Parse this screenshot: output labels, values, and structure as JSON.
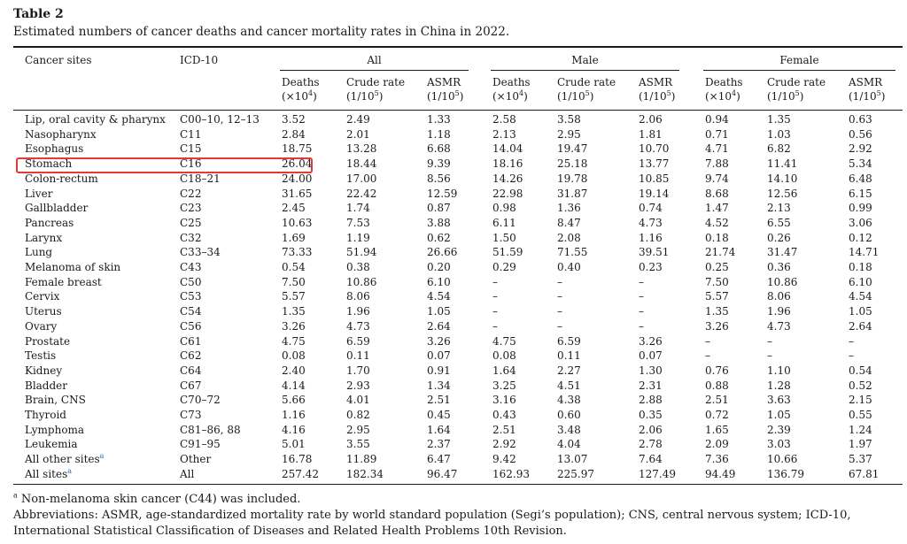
{
  "table_label": "Table 2",
  "caption": "Estimated numbers of cancer deaths and cancer mortality rates in China in 2022.",
  "headers": {
    "site": "Cancer sites",
    "icd": "ICD-10",
    "groups": [
      "All",
      "Male",
      "Female"
    ],
    "deaths_line1": "Deaths",
    "deaths_line2": "(×10",
    "deaths_exp": "4",
    "crude_line1": "Crude rate",
    "crude_line2": "(1/10",
    "crude_exp": "5",
    "asmr_line1": "ASMR",
    "asmr_line2": "(1/10",
    "asmr_exp": "5",
    "close": ")"
  },
  "rows": [
    {
      "site": "Lip, oral cavity & pharynx",
      "icd": "C00–10, 12–13",
      "v": [
        "3.52",
        "2.49",
        "1.33",
        "2.58",
        "3.58",
        "2.06",
        "0.94",
        "1.35",
        "0.63"
      ]
    },
    {
      "site": "Nasopharynx",
      "icd": "C11",
      "v": [
        "2.84",
        "2.01",
        "1.18",
        "2.13",
        "2.95",
        "1.81",
        "0.71",
        "1.03",
        "0.56"
      ]
    },
    {
      "site": "Esophagus",
      "icd": "C15",
      "v": [
        "18.75",
        "13.28",
        "6.68",
        "14.04",
        "19.47",
        "10.70",
        "4.71",
        "6.82",
        "2.92"
      ]
    },
    {
      "site": "Stomach",
      "icd": "C16",
      "v": [
        "26.04",
        "18.44",
        "9.39",
        "18.16",
        "25.18",
        "13.77",
        "7.88",
        "11.41",
        "5.34"
      ]
    },
    {
      "site": "Colon-rectum",
      "icd": "C18–21",
      "v": [
        "24.00",
        "17.00",
        "8.56",
        "14.26",
        "19.78",
        "10.85",
        "9.74",
        "14.10",
        "6.48"
      ]
    },
    {
      "site": "Liver",
      "icd": "C22",
      "v": [
        "31.65",
        "22.42",
        "12.59",
        "22.98",
        "31.87",
        "19.14",
        "8.68",
        "12.56",
        "6.15"
      ]
    },
    {
      "site": "Gallbladder",
      "icd": "C23",
      "v": [
        "2.45",
        "1.74",
        "0.87",
        "0.98",
        "1.36",
        "0.74",
        "1.47",
        "2.13",
        "0.99"
      ]
    },
    {
      "site": "Pancreas",
      "icd": "C25",
      "v": [
        "10.63",
        "7.53",
        "3.88",
        "6.11",
        "8.47",
        "4.73",
        "4.52",
        "6.55",
        "3.06"
      ]
    },
    {
      "site": "Larynx",
      "icd": "C32",
      "v": [
        "1.69",
        "1.19",
        "0.62",
        "1.50",
        "2.08",
        "1.16",
        "0.18",
        "0.26",
        "0.12"
      ]
    },
    {
      "site": "Lung",
      "icd": "C33–34",
      "v": [
        "73.33",
        "51.94",
        "26.66",
        "51.59",
        "71.55",
        "39.51",
        "21.74",
        "31.47",
        "14.71"
      ]
    },
    {
      "site": "Melanoma of skin",
      "icd": "C43",
      "v": [
        "0.54",
        "0.38",
        "0.20",
        "0.29",
        "0.40",
        "0.23",
        "0.25",
        "0.36",
        "0.18"
      ]
    },
    {
      "site": "Female breast",
      "icd": "C50",
      "v": [
        "7.50",
        "10.86",
        "6.10",
        "–",
        "–",
        "–",
        "7.50",
        "10.86",
        "6.10"
      ]
    },
    {
      "site": "Cervix",
      "icd": "C53",
      "v": [
        "5.57",
        "8.06",
        "4.54",
        "–",
        "–",
        "–",
        "5.57",
        "8.06",
        "4.54"
      ]
    },
    {
      "site": "Uterus",
      "icd": "C54",
      "v": [
        "1.35",
        "1.96",
        "1.05",
        "–",
        "–",
        "–",
        "1.35",
        "1.96",
        "1.05"
      ]
    },
    {
      "site": "Ovary",
      "icd": "C56",
      "v": [
        "3.26",
        "4.73",
        "2.64",
        "–",
        "–",
        "–",
        "3.26",
        "4.73",
        "2.64"
      ]
    },
    {
      "site": "Prostate",
      "icd": "C61",
      "v": [
        "4.75",
        "6.59",
        "3.26",
        "4.75",
        "6.59",
        "3.26",
        "–",
        "–",
        "–"
      ]
    },
    {
      "site": "Testis",
      "icd": "C62",
      "v": [
        "0.08",
        "0.11",
        "0.07",
        "0.08",
        "0.11",
        "0.07",
        "–",
        "–",
        "–"
      ]
    },
    {
      "site": "Kidney",
      "icd": "C64",
      "v": [
        "2.40",
        "1.70",
        "0.91",
        "1.64",
        "2.27",
        "1.30",
        "0.76",
        "1.10",
        "0.54"
      ]
    },
    {
      "site": "Bladder",
      "icd": "C67",
      "v": [
        "4.14",
        "2.93",
        "1.34",
        "3.25",
        "4.51",
        "2.31",
        "0.88",
        "1.28",
        "0.52"
      ]
    },
    {
      "site": "Brain, CNS",
      "icd": "C70–72",
      "v": [
        "5.66",
        "4.01",
        "2.51",
        "3.16",
        "4.38",
        "2.88",
        "2.51",
        "3.63",
        "2.15"
      ]
    },
    {
      "site": "Thyroid",
      "icd": "C73",
      "v": [
        "1.16",
        "0.82",
        "0.45",
        "0.43",
        "0.60",
        "0.35",
        "0.72",
        "1.05",
        "0.55"
      ]
    },
    {
      "site": "Lymphoma",
      "icd": "C81–86, 88",
      "v": [
        "4.16",
        "2.95",
        "1.64",
        "2.51",
        "3.48",
        "2.06",
        "1.65",
        "2.39",
        "1.24"
      ]
    },
    {
      "site": "Leukemia",
      "icd": "C91–95",
      "v": [
        "5.01",
        "3.55",
        "2.37",
        "2.92",
        "4.04",
        "2.78",
        "2.09",
        "3.03",
        "1.97"
      ]
    },
    {
      "site": "All other sites",
      "mark": "a",
      "icd": "Other",
      "v": [
        "16.78",
        "11.89",
        "6.47",
        "9.42",
        "13.07",
        "7.64",
        "7.36",
        "10.66",
        "5.37"
      ]
    },
    {
      "site": "All sites",
      "mark": "a",
      "icd": "All",
      "v": [
        "257.42",
        "182.34",
        "96.47",
        "162.93",
        "225.97",
        "127.49",
        "94.49",
        "136.79",
        "67.81"
      ]
    }
  ],
  "highlight_color": "#e53935",
  "footnote_mark": "a",
  "footnote_text": " Non-melanoma skin cancer (C44) was included.",
  "abbreviations": "Abbreviations: ASMR, age-standardized mortality rate by world standard population (Segi’s population); CNS, central nervous system; ICD-10, International Statistical Classification of Diseases and Related Health Problems 10th Revision."
}
